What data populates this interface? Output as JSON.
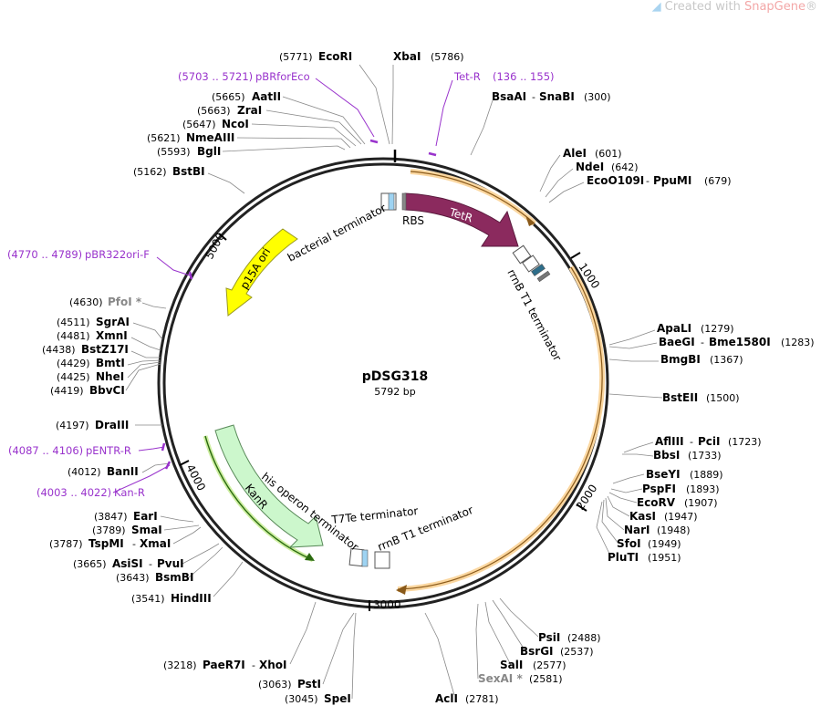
{
  "credit": {
    "prefix": "Created with ",
    "brand": "SnapGene",
    "suffix": "®"
  },
  "plasmid": {
    "name": "pDSG318",
    "size_label": "5792 bp",
    "length": 5792
  },
  "ticks": [
    {
      "label": "1000",
      "bp": 1000
    },
    {
      "label": "2000",
      "bp": 2000
    },
    {
      "label": "3000",
      "bp": 3000
    },
    {
      "label": "4000",
      "bp": 4000
    },
    {
      "label": "5000",
      "bp": 5000
    }
  ],
  "features": {
    "tetr": {
      "label": "TetR",
      "color": "#8b2a5e"
    },
    "kanr": {
      "label": "KanR",
      "color": "#ccf7cc"
    },
    "p15a": {
      "label": "p15A ori",
      "color": "#ffff00"
    },
    "rbs": {
      "label": "RBS"
    },
    "bact_term": {
      "label": "bacterial terminator"
    },
    "rrnb_top": {
      "label": "rrnB T1 terminator"
    },
    "his_term": {
      "label": "his operon terminator"
    },
    "t7te": {
      "label": "T7Te terminator"
    },
    "rrnb_bottom": {
      "label": "rrnB T1 terminator"
    }
  },
  "sites": [
    {
      "name": "EcoRI",
      "pos": "(5771)",
      "side": "left"
    },
    {
      "name": "XbaI",
      "pos": "(5786)",
      "side": "right"
    },
    {
      "name": "BsaAI",
      "extra": "SnaBI",
      "pos": "(300)",
      "side": "right"
    },
    {
      "name": "AatII",
      "pos": "(5665)",
      "side": "left"
    },
    {
      "name": "ZraI",
      "pos": "(5663)",
      "side": "left"
    },
    {
      "name": "NcoI",
      "pos": "(5647)",
      "side": "left"
    },
    {
      "name": "NmeAIII",
      "pos": "(5621)",
      "side": "left"
    },
    {
      "name": "BglI",
      "pos": "(5593)",
      "side": "left"
    },
    {
      "name": "BstBI",
      "pos": "(5162)",
      "side": "left"
    },
    {
      "name": "AleI",
      "pos": "(601)",
      "side": "right"
    },
    {
      "name": "NdeI",
      "pos": "(642)",
      "side": "right"
    },
    {
      "name": "EcoO109I",
      "extra": "PpuMI",
      "pos": "(679)",
      "side": "right"
    },
    {
      "name": "PfoI *",
      "pos": "(4630)",
      "side": "left",
      "grey": true
    },
    {
      "name": "SgrAI",
      "pos": "(4511)",
      "side": "left"
    },
    {
      "name": "XmnI",
      "pos": "(4481)",
      "side": "left"
    },
    {
      "name": "BstZ17I",
      "pos": "(4438)",
      "side": "left"
    },
    {
      "name": "BmtI",
      "pos": "(4429)",
      "side": "left"
    },
    {
      "name": "NheI",
      "pos": "(4425)",
      "side": "left"
    },
    {
      "name": "BbvCI",
      "pos": "(4419)",
      "side": "left"
    },
    {
      "name": "ApaLI",
      "pos": "(1279)",
      "side": "right"
    },
    {
      "name": "BaeGI",
      "extra": "Bme1580I",
      "pos": "(1283)",
      "side": "right"
    },
    {
      "name": "BmgBI",
      "pos": "(1367)",
      "side": "right"
    },
    {
      "name": "BstEII",
      "pos": "(1500)",
      "side": "right"
    },
    {
      "name": "DraIII",
      "pos": "(4197)",
      "side": "left"
    },
    {
      "name": "AflIII",
      "extra": "PciI",
      "pos": "(1723)",
      "side": "right"
    },
    {
      "name": "BbsI",
      "pos": "(1733)",
      "side": "right"
    },
    {
      "name": "BanII",
      "pos": "(4012)",
      "side": "left"
    },
    {
      "name": "BseYI",
      "pos": "(1889)",
      "side": "right"
    },
    {
      "name": "PspFI",
      "pos": "(1893)",
      "side": "right"
    },
    {
      "name": "EcoRV",
      "pos": "(1907)",
      "side": "right"
    },
    {
      "name": "KasI",
      "pos": "(1947)",
      "side": "right"
    },
    {
      "name": "NarI",
      "pos": "(1948)",
      "side": "right"
    },
    {
      "name": "SfoI",
      "pos": "(1949)",
      "side": "right"
    },
    {
      "name": "PluTI",
      "pos": "(1951)",
      "side": "right"
    },
    {
      "name": "EarI",
      "pos": "(3847)",
      "side": "left"
    },
    {
      "name": "SmaI",
      "pos": "(3789)",
      "side": "left"
    },
    {
      "name": "TspMI",
      "extra": "XmaI",
      "pos": "(3787)",
      "side": "left"
    },
    {
      "name": "AsiSI",
      "extra": "PvuI",
      "pos": "(3665)",
      "side": "left"
    },
    {
      "name": "BsmBI",
      "pos": "(3643)",
      "side": "left"
    },
    {
      "name": "HindIII",
      "pos": "(3541)",
      "side": "left"
    },
    {
      "name": "PsiI",
      "pos": "(2488)",
      "side": "right"
    },
    {
      "name": "BsrGI",
      "pos": "(2537)",
      "side": "right"
    },
    {
      "name": "SalI",
      "pos": "(2577)",
      "side": "right"
    },
    {
      "name": "SexAI *",
      "pos": "(2581)",
      "side": "right",
      "grey": true
    },
    {
      "name": "PaeR7I",
      "extra": "XhoI",
      "pos": "(3218)",
      "side": "left"
    },
    {
      "name": "PstI",
      "pos": "(3063)",
      "side": "left"
    },
    {
      "name": "SpeI",
      "pos": "(3045)",
      "side": "left"
    },
    {
      "name": "AclI",
      "pos": "(2781)",
      "side": "right"
    }
  ],
  "primers": [
    {
      "name": "pBRforEco",
      "pos": "(5703 .. 5721)",
      "side": "left"
    },
    {
      "name": "Tet-R",
      "pos": "(136 .. 155)",
      "side": "right"
    },
    {
      "name": "pBR322ori-F",
      "pos": "(4770 .. 4789)",
      "side": "left"
    },
    {
      "name": "pENTR-R",
      "pos": "(4087 .. 4106)",
      "side": "left"
    },
    {
      "name": "Kan-R",
      "pos": "(4003 .. 4022)",
      "side": "left"
    }
  ],
  "colors": {
    "primer": "#9933cc",
    "orf": "#f5a623",
    "backbone": "#222222"
  }
}
